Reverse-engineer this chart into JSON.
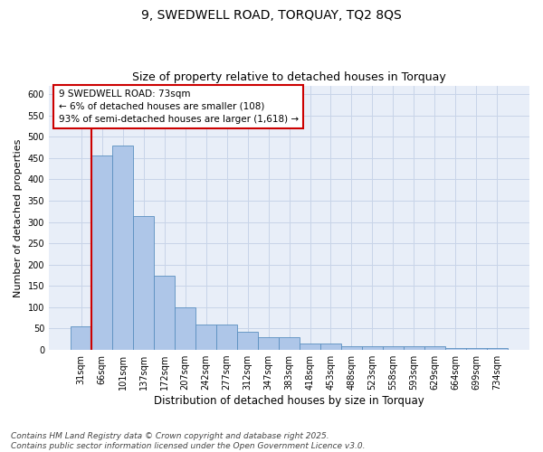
{
  "title": "9, SWEDWELL ROAD, TORQUAY, TQ2 8QS",
  "subtitle": "Size of property relative to detached houses in Torquay",
  "xlabel": "Distribution of detached houses by size in Torquay",
  "ylabel": "Number of detached properties",
  "categories": [
    "31sqm",
    "66sqm",
    "101sqm",
    "137sqm",
    "172sqm",
    "207sqm",
    "242sqm",
    "277sqm",
    "312sqm",
    "347sqm",
    "383sqm",
    "418sqm",
    "453sqm",
    "488sqm",
    "523sqm",
    "558sqm",
    "593sqm",
    "629sqm",
    "664sqm",
    "699sqm",
    "734sqm"
  ],
  "values": [
    55,
    455,
    480,
    313,
    175,
    100,
    60,
    60,
    42,
    30,
    30,
    14,
    14,
    9,
    9,
    9,
    9,
    8,
    4,
    4,
    4
  ],
  "bar_color": "#aec6e8",
  "bar_edge_color": "#5a8fc0",
  "grid_color": "#c8d4e8",
  "background_color": "#e8eef8",
  "annotation_box_text": "9 SWEDWELL ROAD: 73sqm\n← 6% of detached houses are smaller (108)\n93% of semi-detached houses are larger (1,618) →",
  "annotation_box_color": "#cc0000",
  "property_line_x": 1,
  "ylim": [
    0,
    620
  ],
  "yticks": [
    0,
    50,
    100,
    150,
    200,
    250,
    300,
    350,
    400,
    450,
    500,
    550,
    600
  ],
  "footer": "Contains HM Land Registry data © Crown copyright and database right 2025.\nContains public sector information licensed under the Open Government Licence v3.0.",
  "title_fontsize": 10,
  "subtitle_fontsize": 9,
  "xlabel_fontsize": 8.5,
  "ylabel_fontsize": 8,
  "tick_fontsize": 7,
  "footer_fontsize": 6.5,
  "annotation_fontsize": 7.5
}
